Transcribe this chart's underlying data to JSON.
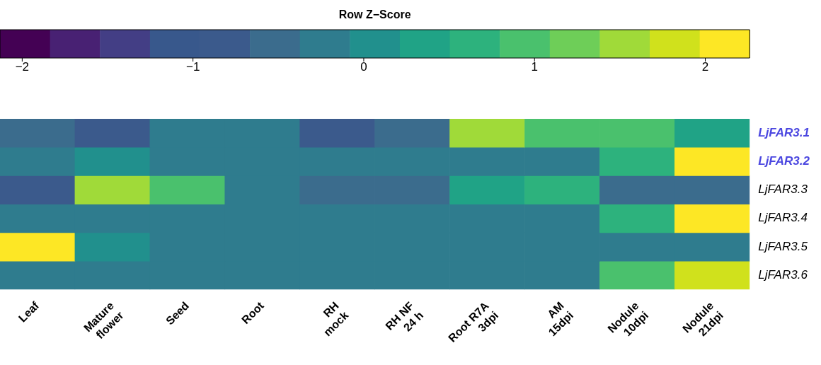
{
  "chart_data": {
    "type": "heatmap",
    "clabel": "Row Z−Score",
    "clim": [
      -2.13,
      2.26
    ],
    "cticks": [
      {
        "value": -2,
        "label": "−2"
      },
      {
        "value": -1,
        "label": "−1"
      },
      0,
      1,
      2
    ],
    "categories": [
      "Leaf",
      "Mature\nflower",
      "Seed",
      "Root",
      "RH\nmock",
      "RH NF\n24 h",
      "Root R7A\n3dpi",
      "AM\n15dpi",
      "Nodule\n10dpi",
      "Nodule\n21dpi"
    ],
    "y_categories": [
      "LjFAR3.1",
      "LjFAR3.2",
      "LjFAR3.3",
      "LjFAR3.4",
      "LjFAR3.5",
      "LjFAR3.6"
    ],
    "cells": [
      [
        -0.52,
        -0.81,
        -0.23,
        -0.23,
        -0.81,
        -0.52,
        1.53,
        0.94,
        0.94,
        0.36
      ],
      [
        -0.23,
        0.06,
        -0.23,
        -0.23,
        -0.23,
        -0.23,
        -0.23,
        -0.23,
        0.65,
        2.11
      ],
      [
        -0.81,
        1.53,
        0.94,
        -0.23,
        -0.52,
        -0.52,
        0.36,
        0.65,
        -0.52,
        -0.52
      ],
      [
        -0.23,
        -0.23,
        -0.23,
        -0.23,
        -0.23,
        -0.23,
        -0.23,
        -0.23,
        0.65,
        2.11
      ],
      [
        2.11,
        0.06,
        -0.23,
        -0.23,
        -0.23,
        -0.23,
        -0.23,
        -0.23,
        -0.23,
        -0.23
      ],
      [
        -0.23,
        -0.23,
        -0.23,
        -0.23,
        -0.23,
        -0.23,
        -0.23,
        -0.23,
        0.94,
        1.82
      ]
    ],
    "grid": false
  }
}
